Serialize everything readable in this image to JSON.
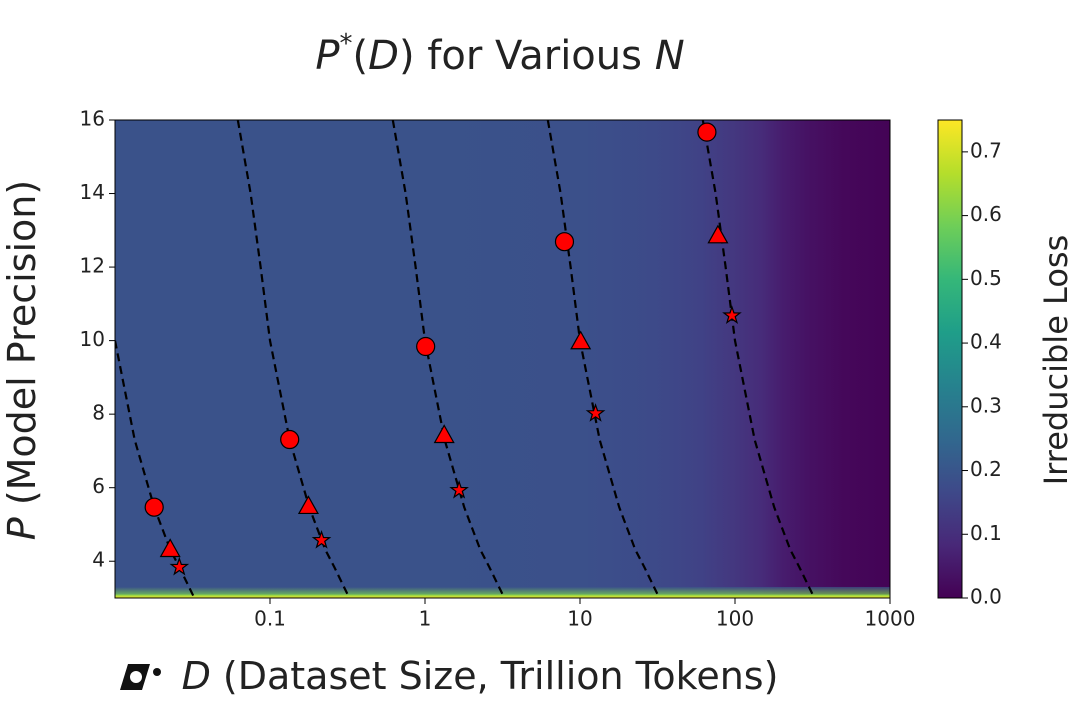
{
  "chart_data": {
    "type": "heatmap_curves",
    "title": [
      "P",
      "*",
      "(",
      "D",
      ") for Various ",
      "N"
    ],
    "x_label": [
      "D",
      " (Dataset Size, Trillion Tokens)"
    ],
    "y_label": [
      "P",
      " (Model Precision)"
    ],
    "colorbar_label": "Irreducible Loss",
    "xscale": "log",
    "xlim": [
      0.01,
      1000
    ],
    "xticks": [
      0.1,
      1,
      10,
      100,
      1000
    ],
    "ylim": [
      3,
      16
    ],
    "yticks": [
      4,
      6,
      8,
      10,
      12,
      14,
      16
    ],
    "colormap": "viridis",
    "clim": [
      0,
      0.75
    ],
    "cticks": [
      {
        "value": 0,
        "label": "0.0"
      },
      0.1,
      0.2,
      0.3,
      0.4,
      0.5,
      0.6,
      0.7
    ],
    "heatmap": {
      "x": [
        0.01,
        1,
        10,
        30,
        60,
        100,
        150,
        200,
        300,
        500,
        1000
      ],
      "values": [
        0.19,
        0.19,
        0.185,
        0.17,
        0.15,
        0.12,
        0.09,
        0.06,
        0.035,
        0.015,
        0.005
      ],
      "bottom_y": [
        3,
        3.1,
        3.3
      ],
      "bottom_values": [
        0.74,
        0.6,
        0.19
      ]
    },
    "curve_color": "#000000",
    "curves": [
      {
        "x": [
          0.01,
          0.0134,
          0.0179,
          0.0227,
          0.026,
          0.0325
        ],
        "y": [
          10,
          7.3,
          5.47,
          4.32,
          3.84,
          3
        ]
      },
      {
        "x": [
          0.062,
          0.075,
          0.087,
          0.1,
          0.134,
          0.179,
          0.227,
          0.26,
          0.325
        ],
        "y": [
          16,
          14,
          12,
          10,
          7.3,
          5.47,
          4.32,
          3.84,
          3
        ]
      },
      {
        "x": [
          0.62,
          0.75,
          0.87,
          1,
          1.34,
          1.79,
          2.27,
          2.6,
          3.25
        ],
        "y": [
          16,
          14,
          12,
          10,
          7.3,
          5.47,
          4.32,
          3.84,
          3
        ]
      },
      {
        "x": [
          6.2,
          7.5,
          8.7,
          10,
          13.4,
          17.9,
          22.7,
          26,
          32.5
        ],
        "y": [
          16,
          14,
          12,
          10,
          7.3,
          5.47,
          4.32,
          3.84,
          3
        ]
      },
      {
        "x": [
          62,
          75,
          87,
          100,
          134,
          179,
          227,
          260,
          325
        ],
        "y": [
          16,
          14,
          12,
          10,
          7.3,
          5.47,
          4.32,
          3.84,
          3
        ]
      }
    ],
    "marker_color": "#ff0000",
    "markers": [
      {
        "shape": "circle",
        "x": [
          0.0179,
          0.134,
          1.01,
          7.94,
          65.9
        ],
        "y": [
          5.47,
          7.31,
          9.84,
          12.69,
          15.67
        ]
      },
      {
        "shape": "triangle",
        "x": [
          0.0227,
          0.177,
          1.33,
          10.1,
          77.6
        ],
        "y": [
          4.32,
          5.49,
          7.42,
          9.97,
          12.85
        ]
      },
      {
        "shape": "star",
        "x": [
          0.026,
          0.215,
          1.66,
          12.6,
          95.6
        ],
        "y": [
          3.84,
          4.57,
          5.93,
          8.02,
          10.68
        ]
      }
    ]
  }
}
